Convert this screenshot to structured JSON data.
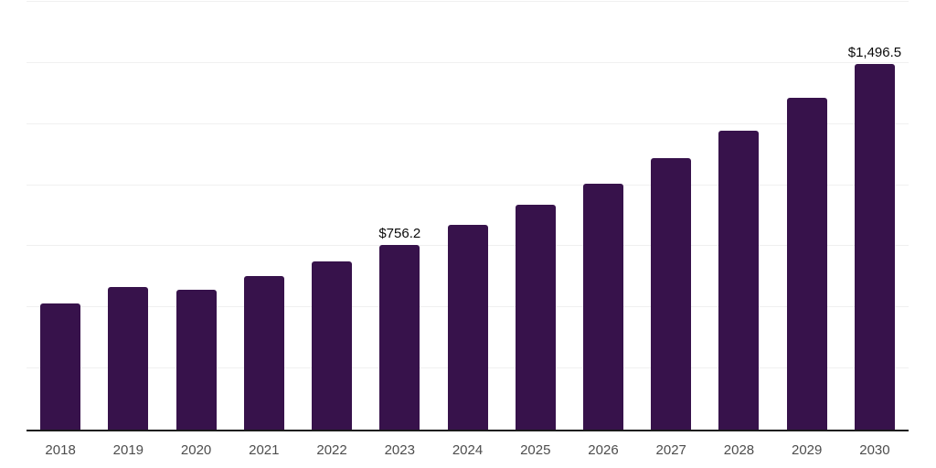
{
  "chart_data": {
    "type": "bar",
    "title": "",
    "xlabel": "",
    "ylabel": "",
    "categories": [
      "2018",
      "2019",
      "2020",
      "2021",
      "2022",
      "2023",
      "2024",
      "2025",
      "2026",
      "2027",
      "2028",
      "2029",
      "2030"
    ],
    "values": [
      516,
      583,
      572,
      628,
      688,
      756.2,
      838,
      920,
      1006,
      1111,
      1223,
      1357,
      1496.5
    ],
    "data_labels": [
      "",
      "",
      "",
      "",
      "",
      "$756.2",
      "",
      "",
      "",
      "",
      "",
      "",
      "$1,496.5"
    ],
    "ylim": [
      0,
      1750
    ],
    "grid_step": 250,
    "grid": true,
    "legend_position": "none"
  },
  "style": {
    "bar_color": "#37124b",
    "grid_color": "#f0f0f0",
    "axis_color": "#1a1a1a",
    "tick_label_color": "#4d4d4d",
    "data_label_color": "#0a0a0a",
    "background": "#ffffff"
  }
}
